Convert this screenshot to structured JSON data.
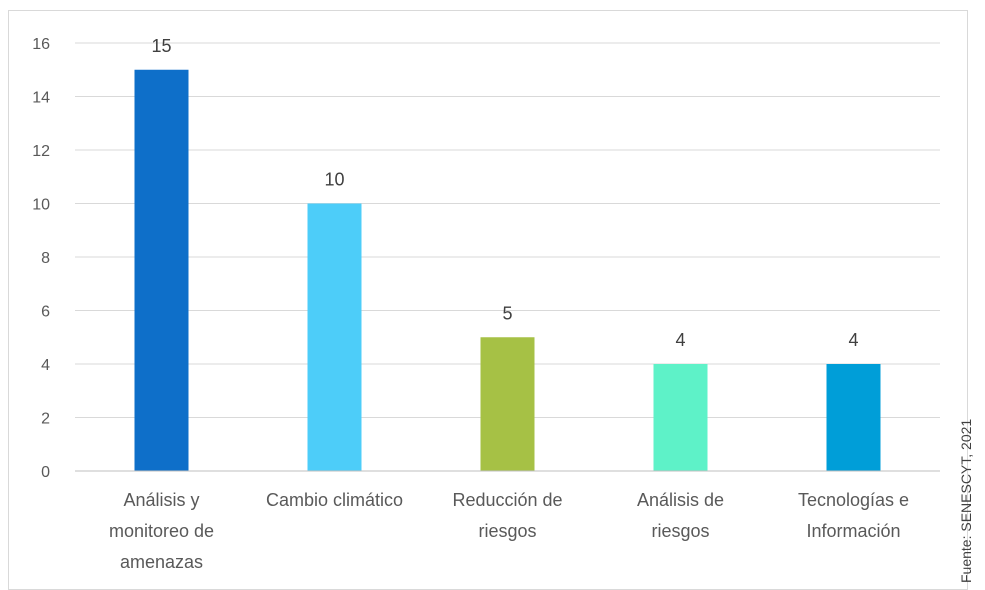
{
  "chart_data": {
    "type": "bar",
    "categories": [
      "Análisis y monitoreo de amenazas",
      "Cambio climático",
      "Reducción de riesgos",
      "Análisis de riesgos",
      "Tecnologías e Información"
    ],
    "category_lines": [
      [
        "Análisis y",
        "monitoreo de",
        "amenazas"
      ],
      [
        "Cambio climático"
      ],
      [
        "Reducción de",
        "riesgos"
      ],
      [
        "Análisis de",
        "riesgos"
      ],
      [
        "Tecnologías e",
        "Información"
      ]
    ],
    "values": [
      15,
      10,
      5,
      4,
      4
    ],
    "colors": [
      "#0e6fc9",
      "#4dcdf9",
      "#a6c145",
      "#5ef2c8",
      "#009ed8"
    ],
    "ylim": [
      0,
      16
    ],
    "yticks": [
      0,
      2,
      4,
      6,
      8,
      10,
      12,
      14,
      16
    ],
    "grid": true,
    "data_labels": true,
    "title": "",
    "xlabel": "",
    "ylabel": ""
  },
  "source_note": "Fuente: SENESCYT, 2021"
}
